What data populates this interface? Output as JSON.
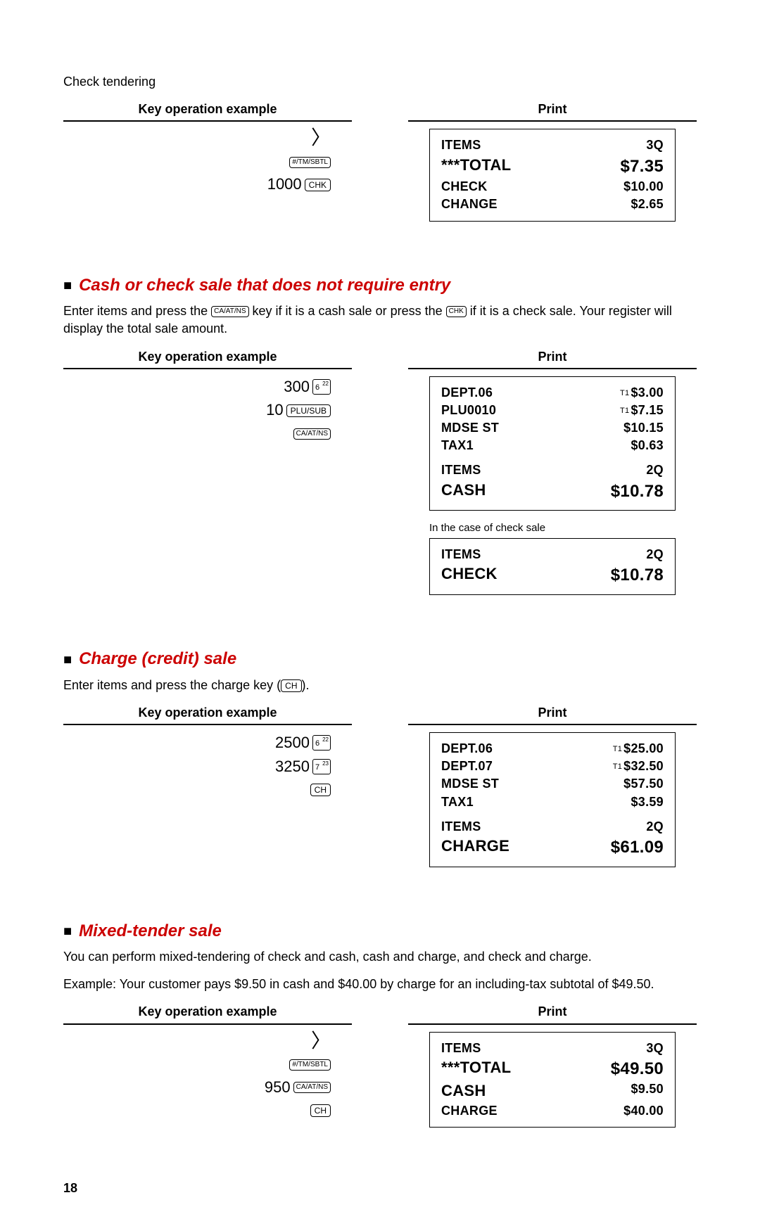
{
  "checkTendering": {
    "label": "Check tendering",
    "headerLeft": "Key operation example",
    "headerRight": "Print",
    "keys": {
      "arrow": "〉",
      "btn1": "#/TM/SBTL",
      "amt": "1000",
      "btn2": "CHK"
    },
    "receipt": [
      {
        "label": "ITEMS",
        "val": "3Q",
        "big": false
      },
      {
        "label": "***TOTAL",
        "val": "$7.35",
        "big": true
      },
      {
        "label": "CHECK",
        "val": "$10.00",
        "big": false
      },
      {
        "label": "CHANGE",
        "val": "$2.65",
        "big": false
      }
    ]
  },
  "cashOrCheck": {
    "title": "Cash or check sale that does not require entry",
    "paraA": "Enter items and press the ",
    "keyA": "CA/AT/NS",
    "paraB": " key if it is a cash sale or press the ",
    "keyB": "CHK",
    "paraC": " if it is a check sale.  Your register will display the total sale amount.",
    "headerLeft": "Key operation example",
    "headerRight": "Print",
    "keys": {
      "amt1": "300",
      "dept1main": "6",
      "dept1sup": "22",
      "amt2": "10",
      "btn2": "PLU/SUB",
      "btn3": "CA/AT/NS"
    },
    "receipt1": [
      {
        "label": "DEPT.06",
        "val": "$3.00",
        "t1": true
      },
      {
        "label": "PLU0010",
        "val": "$7.15",
        "t1": true
      },
      {
        "label": "MDSE ST",
        "val": "$10.15"
      },
      {
        "label": "TAX1",
        "val": "$0.63"
      },
      {
        "gap": true
      },
      {
        "label": "ITEMS",
        "val": "2Q"
      },
      {
        "label": "CASH",
        "val": "$10.78",
        "big": true
      }
    ],
    "note": "In the case of check sale",
    "receipt2": [
      {
        "label": "ITEMS",
        "val": "2Q"
      },
      {
        "label": "CHECK",
        "val": "$10.78",
        "big": true
      }
    ]
  },
  "charge": {
    "title": "Charge (credit) sale",
    "paraA": "Enter items and press the charge key (",
    "keyA": "CH",
    "paraB": ").",
    "headerLeft": "Key operation example",
    "headerRight": "Print",
    "keys": {
      "amt1": "2500",
      "d1main": "6",
      "d1sup": "22",
      "amt2": "3250",
      "d2main": "7",
      "d2sup": "23",
      "btn3": "CH"
    },
    "receipt": [
      {
        "label": "DEPT.06",
        "val": "$25.00",
        "t1": true
      },
      {
        "label": "DEPT.07",
        "val": "$32.50",
        "t1": true
      },
      {
        "label": "MDSE ST",
        "val": "$57.50"
      },
      {
        "label": "TAX1",
        "val": "$3.59"
      },
      {
        "gap": true
      },
      {
        "label": "ITEMS",
        "val": "2Q"
      },
      {
        "label": "CHARGE",
        "val": "$61.09",
        "big": true
      }
    ]
  },
  "mixed": {
    "title": "Mixed-tender sale",
    "para1": "You can perform mixed-tendering of check and cash, cash and charge, and check and charge.",
    "para2": "Example:  Your customer pays $9.50 in cash and $40.00 by charge for an including-tax subtotal of $49.50.",
    "headerLeft": "Key operation example",
    "headerRight": "Print",
    "keys": {
      "arrow": "〉",
      "btn1": "#/TM/SBTL",
      "amt": "950",
      "btn2": "CA/AT/NS",
      "btn3": "CH"
    },
    "receipt": [
      {
        "label": "ITEMS",
        "val": "3Q"
      },
      {
        "label": "***TOTAL",
        "val": "$49.50",
        "big": true
      },
      {
        "label": "CASH",
        "val": "$9.50",
        "biglabel": true
      },
      {
        "label": "CHARGE",
        "val": "$40.00"
      }
    ]
  },
  "pageNumber": "18"
}
